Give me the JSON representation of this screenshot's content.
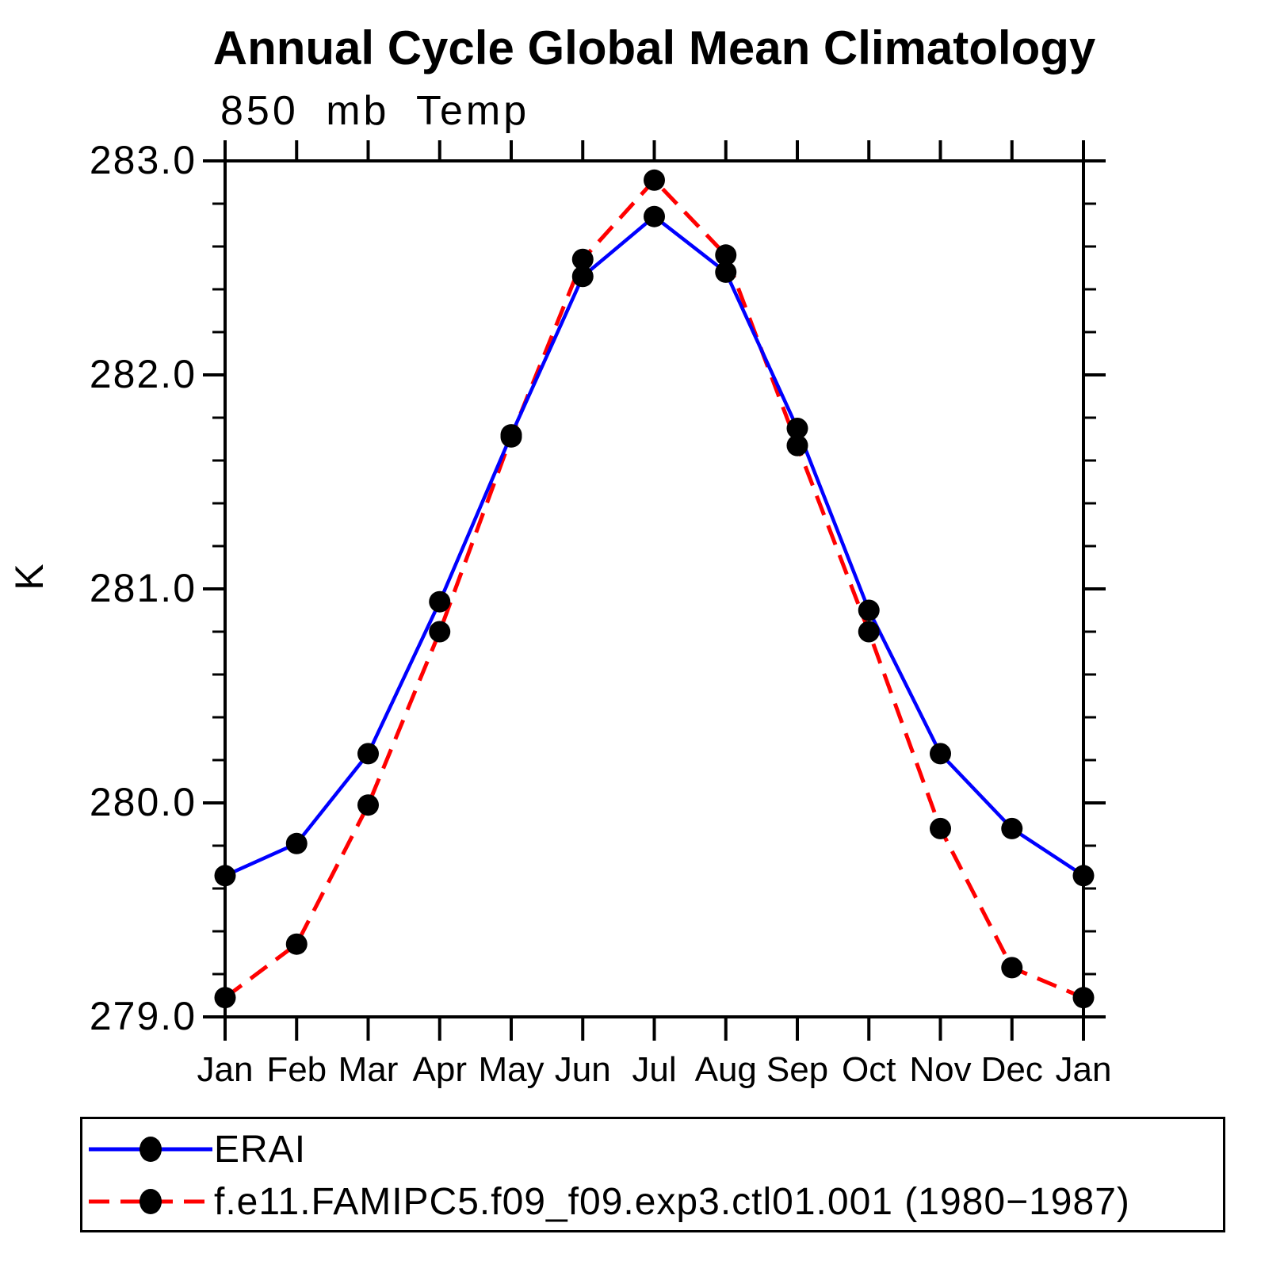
{
  "chart_data": {
    "type": "line",
    "title": "Annual Cycle Global Mean Climatology",
    "subtitle": "850 mb Temp",
    "ylabel": "K",
    "xlabel": "",
    "categories": [
      "Jan",
      "Feb",
      "Mar",
      "Apr",
      "May",
      "Jun",
      "Jul",
      "Aug",
      "Sep",
      "Oct",
      "Nov",
      "Dec",
      "Jan"
    ],
    "ylim": [
      279.0,
      283.0
    ],
    "ytick_interval": 1.0,
    "yminor_interval": 0.2,
    "ytick_labels": [
      "279.0",
      "280.0",
      "281.0",
      "282.0",
      "283.0"
    ],
    "grid": false,
    "legend_position": "bottom-left-box",
    "frame_color": "#000000",
    "marker": {
      "shape": "circle",
      "color": "#000000"
    },
    "series": [
      {
        "name": "ERAI",
        "color": "#0000ff",
        "style": "solid",
        "values": [
          279.66,
          279.81,
          280.23,
          280.94,
          281.72,
          282.46,
          282.74,
          282.48,
          281.75,
          280.9,
          280.23,
          279.88,
          279.66
        ]
      },
      {
        "name": "f.e11.FAMIPC5.f09_f09.exp3.ctl01.001 (1980−1987)",
        "color": "#ff0000",
        "style": "dashed",
        "values": [
          279.09,
          279.34,
          279.99,
          280.8,
          281.71,
          282.54,
          282.91,
          282.56,
          281.67,
          280.8,
          279.88,
          279.23,
          279.09
        ]
      }
    ]
  }
}
